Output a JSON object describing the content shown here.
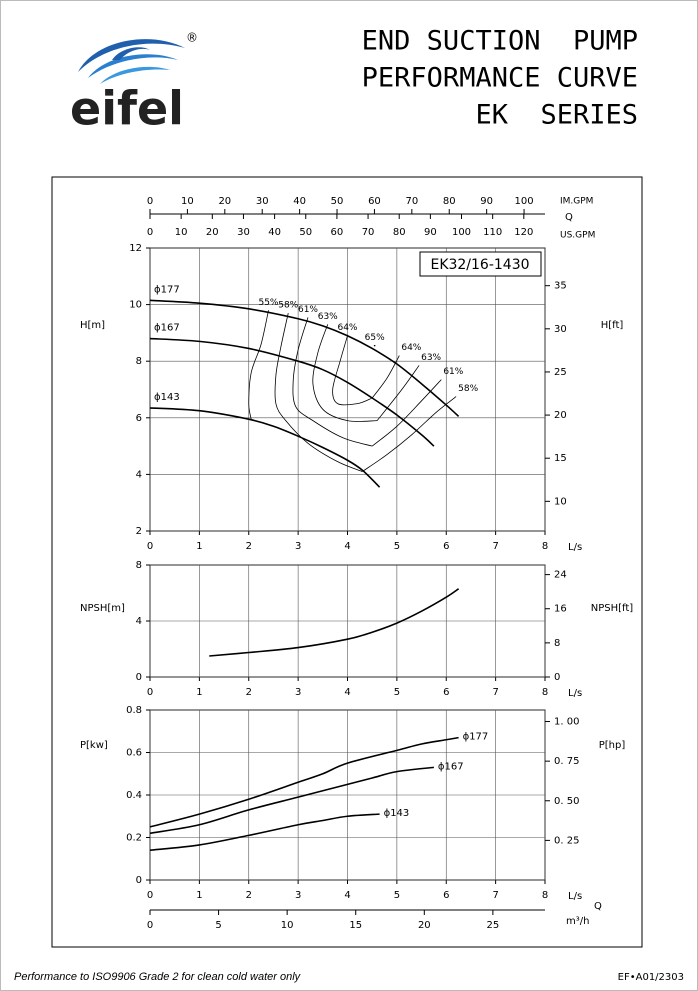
{
  "header": {
    "brand": "eifel",
    "registered": "®",
    "title_lines": [
      "END SUCTION  PUMP",
      "PERFORMANCE CURVE",
      "EK  SERIES"
    ]
  },
  "footer": {
    "note": "Performance to ISO9906 Grade 2 for clean cold water only",
    "code": "EF•A01/2303"
  },
  "chart_data": [
    {
      "type": "line",
      "model": "EK32/16-1430",
      "xlabel": "L/s",
      "ylabel": "H[m]",
      "y2label": "H[ft]",
      "xlim": [
        0,
        8
      ],
      "xticks": [
        0,
        1,
        2,
        3,
        4,
        5,
        6,
        7,
        8
      ],
      "ylim": [
        2,
        12
      ],
      "yticks": [
        2,
        4,
        6,
        8,
        10,
        12
      ],
      "y2lim": [
        6.56,
        39.37
      ],
      "y2ticks": [
        10,
        15,
        20,
        25,
        30,
        35
      ],
      "grid": true,
      "top_axis_title": "Q",
      "top_axes": [
        {
          "label": "IM.GPM",
          "lim": [
            0,
            105.6
          ],
          "ticks": [
            0,
            10,
            20,
            30,
            40,
            50,
            60,
            70,
            80,
            90,
            100
          ]
        },
        {
          "label": "US.GPM",
          "lim": [
            0,
            126.8
          ],
          "ticks": [
            0,
            10,
            20,
            30,
            40,
            50,
            60,
            70,
            80,
            90,
            100,
            110,
            120
          ]
        }
      ],
      "series": [
        {
          "name": "ϕ177",
          "color": "#000000",
          "x": [
            0,
            1,
            2,
            3,
            3.5,
            4,
            4.5,
            5,
            5.5,
            6,
            6.25
          ],
          "values": [
            10.15,
            10.05,
            9.85,
            9.5,
            9.25,
            8.9,
            8.45,
            7.9,
            7.2,
            6.45,
            6.05
          ]
        },
        {
          "name": "ϕ167",
          "color": "#000000",
          "x": [
            0,
            1,
            2,
            3,
            3.5,
            4,
            4.5,
            5,
            5.5,
            5.75
          ],
          "values": [
            8.8,
            8.7,
            8.45,
            8.0,
            7.7,
            7.25,
            6.7,
            6.1,
            5.4,
            5.0
          ]
        },
        {
          "name": "ϕ143",
          "color": "#000000",
          "x": [
            0,
            1,
            2,
            2.5,
            3,
            3.5,
            4,
            4.3,
            4.65
          ],
          "values": [
            6.35,
            6.25,
            5.95,
            5.7,
            5.35,
            4.95,
            4.5,
            4.15,
            3.55
          ]
        }
      ],
      "efficiency_curves": [
        {
          "name": "55%",
          "x": [
            2.4,
            2.25,
            2.05,
            2.0,
            2.05
          ],
          "values": [
            9.8,
            8.6,
            7.6,
            6.5,
            5.95
          ]
        },
        {
          "name": "58%",
          "x": [
            2.8,
            2.65,
            2.55,
            2.55,
            2.75,
            3.2,
            3.8,
            4.3
          ],
          "values": [
            9.7,
            8.5,
            7.5,
            6.5,
            5.9,
            5.1,
            4.45,
            4.1
          ]
        },
        {
          "name": "61%",
          "x": [
            3.2,
            3.0,
            2.9,
            2.95,
            3.3,
            3.9,
            4.5
          ],
          "values": [
            9.55,
            8.4,
            7.3,
            6.4,
            5.9,
            5.3,
            5.0
          ]
        },
        {
          "name": "63%",
          "x": [
            3.6,
            3.4,
            3.3,
            3.5,
            4.0,
            4.6
          ],
          "values": [
            9.3,
            8.3,
            7.2,
            6.3,
            5.9,
            5.9
          ]
        },
        {
          "name": "64%",
          "x": [
            4.0,
            3.85,
            3.7,
            3.8,
            4.2,
            4.5
          ],
          "values": [
            8.9,
            8.0,
            7.0,
            6.5,
            6.5,
            6.7
          ]
        },
        {
          "name": "65%",
          "x": [
            4.55
          ],
          "values": [
            8.55
          ]
        },
        {
          "name": "64%",
          "x": [
            5.05,
            4.8,
            4.5
          ],
          "values": [
            8.2,
            7.4,
            6.7
          ]
        },
        {
          "name": "63%",
          "x": [
            5.45,
            5.1,
            4.6
          ],
          "values": [
            7.85,
            7.0,
            5.9
          ]
        },
        {
          "name": "61%",
          "x": [
            5.9,
            5.5,
            5.0,
            4.5
          ],
          "values": [
            7.35,
            6.6,
            5.7,
            5.0
          ]
        },
        {
          "name": "58%",
          "x": [
            6.2,
            5.8,
            5.3,
            4.8,
            4.3
          ],
          "values": [
            6.75,
            6.2,
            5.4,
            4.7,
            4.1
          ]
        }
      ]
    },
    {
      "type": "line",
      "xlabel": "L/s",
      "ylabel": "NPSH[m]",
      "y2label": "NPSH[ft]",
      "xlim": [
        0,
        8
      ],
      "xticks": [
        0,
        1,
        2,
        3,
        4,
        5,
        6,
        7,
        8
      ],
      "ylim": [
        0,
        8
      ],
      "yticks": [
        0,
        4,
        8
      ],
      "y2lim": [
        0,
        26.25
      ],
      "y2ticks": [
        0,
        8,
        16,
        24
      ],
      "grid": true,
      "series": [
        {
          "color": "#000000",
          "x": [
            1.2,
            2,
            3,
            4,
            4.5,
            5,
            5.5,
            6,
            6.25
          ],
          "values": [
            1.5,
            1.75,
            2.1,
            2.7,
            3.2,
            3.85,
            4.7,
            5.7,
            6.3
          ]
        }
      ]
    },
    {
      "type": "line",
      "xlabel": "L/s",
      "ylabel": "P[kw]",
      "y2label": "P[hp]",
      "xlim": [
        0,
        8
      ],
      "xticks": [
        0,
        1,
        2,
        3,
        4,
        5,
        6,
        7,
        8
      ],
      "ylim": [
        0,
        0.8
      ],
      "yticks": [
        0,
        0.2,
        0.4,
        0.6,
        0.8
      ],
      "y2lim": [
        0,
        1.0728
      ],
      "y2ticks": [
        {
          "value": 0.25,
          "label": "0. 25"
        },
        {
          "value": 0.5,
          "label": "0. 50"
        },
        {
          "value": 0.75,
          "label": "0. 75"
        },
        {
          "value": 1.0,
          "label": "1. 00"
        }
      ],
      "grid": true,
      "bottom_axis": {
        "title": "Q",
        "label": "m³/h",
        "lim": [
          0,
          28.8
        ],
        "ticks": [
          0,
          5,
          10,
          15,
          20,
          25
        ]
      },
      "series": [
        {
          "name": "ϕ177",
          "color": "#000000",
          "x": [
            0,
            1,
            2,
            3,
            3.5,
            4,
            5,
            5.5,
            6,
            6.25
          ],
          "values": [
            0.25,
            0.31,
            0.38,
            0.46,
            0.5,
            0.55,
            0.61,
            0.64,
            0.66,
            0.67
          ]
        },
        {
          "name": "ϕ167",
          "color": "#000000",
          "x": [
            0,
            1,
            2,
            3,
            4,
            4.5,
            5,
            5.75
          ],
          "values": [
            0.22,
            0.26,
            0.33,
            0.39,
            0.45,
            0.48,
            0.51,
            0.53
          ]
        },
        {
          "name": "ϕ143",
          "color": "#000000",
          "x": [
            0,
            1,
            2,
            3,
            3.5,
            4,
            4.65
          ],
          "values": [
            0.14,
            0.165,
            0.21,
            0.26,
            0.28,
            0.3,
            0.31
          ]
        }
      ]
    }
  ]
}
